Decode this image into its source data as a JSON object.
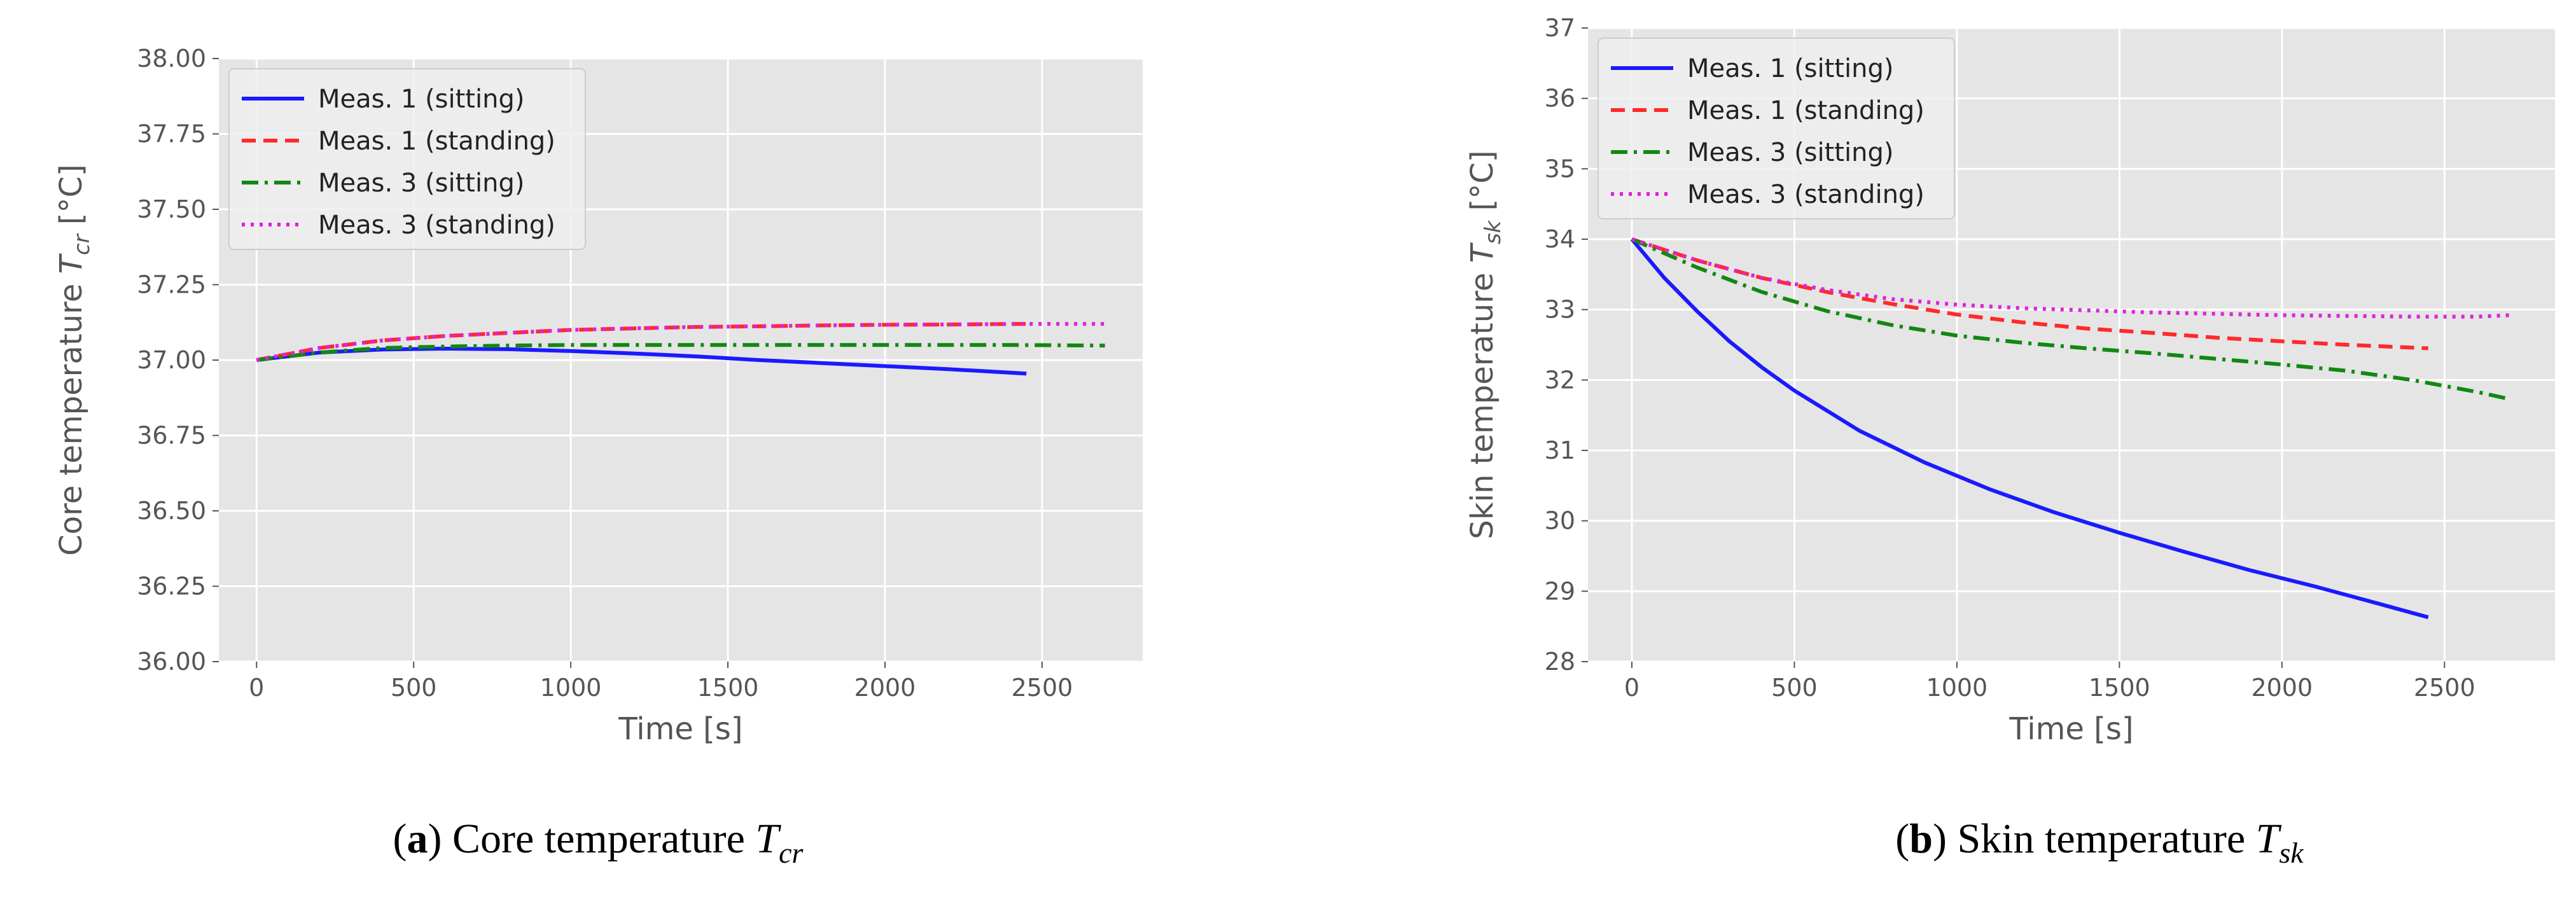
{
  "chart_data": [
    {
      "type": "line",
      "panel_label": "a",
      "caption_text": "Core temperature",
      "caption_symbol": "T",
      "caption_subscript": "cr",
      "title": "",
      "xlabel": "Time [s]",
      "ylabel": "Core temperature",
      "ylabel_symbol": "T",
      "ylabel_subscript": "cr",
      "ylabel_unit": " [°C]",
      "xlim": [
        -120,
        2820
      ],
      "ylim": [
        36.0,
        38.0
      ],
      "xticks": [
        0,
        500,
        1000,
        1500,
        2000,
        2500
      ],
      "yticks": [
        36.0,
        36.25,
        36.5,
        36.75,
        37.0,
        37.25,
        37.5,
        37.75,
        38.0
      ],
      "ytick_labels": [
        "36.00",
        "36.25",
        "36.50",
        "36.75",
        "37.00",
        "37.25",
        "37.50",
        "37.75",
        "38.00"
      ],
      "grid": true,
      "legend_position": "top-left",
      "series": [
        {
          "name": "Meas. 1 (sitting)",
          "color": "#1a1aff",
          "dash": "solid",
          "x": [
            0,
            200,
            400,
            600,
            800,
            1000,
            1200,
            1400,
            1600,
            1800,
            2000,
            2200,
            2450
          ],
          "y": [
            37.0,
            37.025,
            37.035,
            37.038,
            37.036,
            37.03,
            37.022,
            37.012,
            37.0,
            36.99,
            36.98,
            36.97,
            36.955
          ]
        },
        {
          "name": "Meas. 1 (standing)",
          "color": "#ff2a2a",
          "dash": "dashed",
          "x": [
            0,
            200,
            400,
            600,
            800,
            1000,
            1200,
            1400,
            1600,
            1800,
            2000,
            2200,
            2450
          ],
          "y": [
            37.0,
            37.04,
            37.065,
            37.08,
            37.09,
            37.1,
            37.105,
            37.11,
            37.112,
            37.115,
            37.117,
            37.118,
            37.12
          ]
        },
        {
          "name": "Meas. 3 (sitting)",
          "color": "#118811",
          "dash": "dashdot",
          "x": [
            0,
            200,
            400,
            600,
            800,
            1000,
            1200,
            1500,
            1800,
            2100,
            2400,
            2700
          ],
          "y": [
            37.0,
            37.025,
            37.04,
            37.045,
            37.048,
            37.05,
            37.05,
            37.05,
            37.05,
            37.05,
            37.05,
            37.048
          ]
        },
        {
          "name": "Meas. 3 (standing)",
          "color": "#dd22dd",
          "dash": "dotted",
          "x": [
            0,
            200,
            400,
            600,
            800,
            1000,
            1200,
            1400,
            1600,
            1800,
            2000,
            2200,
            2450,
            2700
          ],
          "y": [
            37.0,
            37.04,
            37.065,
            37.08,
            37.09,
            37.1,
            37.105,
            37.11,
            37.112,
            37.115,
            37.117,
            37.118,
            37.12,
            37.12
          ]
        }
      ]
    },
    {
      "type": "line",
      "panel_label": "b",
      "caption_text": "Skin temperature",
      "caption_symbol": "T",
      "caption_subscript": "sk",
      "title": "",
      "xlabel": "Time [s]",
      "ylabel": "Skin temperature",
      "ylabel_symbol": "T",
      "ylabel_subscript": "sk",
      "ylabel_unit": " [°C]",
      "xlim": [
        -135,
        2840
      ],
      "ylim": [
        28,
        37
      ],
      "xticks": [
        0,
        500,
        1000,
        1500,
        2000,
        2500
      ],
      "yticks": [
        28,
        29,
        30,
        31,
        32,
        33,
        34,
        35,
        36,
        37
      ],
      "ytick_labels": [
        "28",
        "29",
        "30",
        "31",
        "32",
        "33",
        "34",
        "35",
        "36",
        "37"
      ],
      "grid": true,
      "legend_position": "top-left",
      "series": [
        {
          "name": "Meas. 1 (sitting)",
          "color": "#1a1aff",
          "dash": "solid",
          "x": [
            0,
            100,
            200,
            300,
            400,
            500,
            700,
            900,
            1100,
            1300,
            1500,
            1700,
            1900,
            2100,
            2300,
            2450
          ],
          "y": [
            34.0,
            33.45,
            32.98,
            32.55,
            32.18,
            31.85,
            31.28,
            30.83,
            30.45,
            30.12,
            29.83,
            29.56,
            29.3,
            29.07,
            28.82,
            28.63
          ]
        },
        {
          "name": "Meas. 1 (standing)",
          "color": "#ff2a2a",
          "dash": "dashed",
          "x": [
            0,
            200,
            400,
            600,
            800,
            1000,
            1200,
            1400,
            1600,
            1800,
            2000,
            2200,
            2450
          ],
          "y": [
            34.0,
            33.7,
            33.45,
            33.25,
            33.08,
            32.93,
            32.82,
            32.73,
            32.67,
            32.6,
            32.55,
            32.5,
            32.45
          ]
        },
        {
          "name": "Meas. 3 (sitting)",
          "color": "#118811",
          "dash": "dashdot",
          "x": [
            0,
            200,
            400,
            600,
            800,
            1000,
            1200,
            1400,
            1600,
            1800,
            2000,
            2200,
            2400,
            2600,
            2700
          ],
          "y": [
            34.0,
            33.6,
            33.25,
            32.98,
            32.78,
            32.63,
            32.53,
            32.45,
            32.38,
            32.3,
            32.22,
            32.13,
            32.0,
            31.83,
            31.73
          ]
        },
        {
          "name": "Meas. 3 (standing)",
          "color": "#dd22dd",
          "dash": "dotted",
          "x": [
            0,
            200,
            400,
            600,
            800,
            1000,
            1200,
            1400,
            1600,
            1800,
            2000,
            2200,
            2400,
            2600,
            2700
          ],
          "y": [
            34.0,
            33.7,
            33.45,
            33.28,
            33.15,
            33.07,
            33.02,
            32.99,
            32.96,
            32.94,
            32.92,
            32.91,
            32.9,
            32.9,
            32.92
          ]
        }
      ]
    }
  ]
}
